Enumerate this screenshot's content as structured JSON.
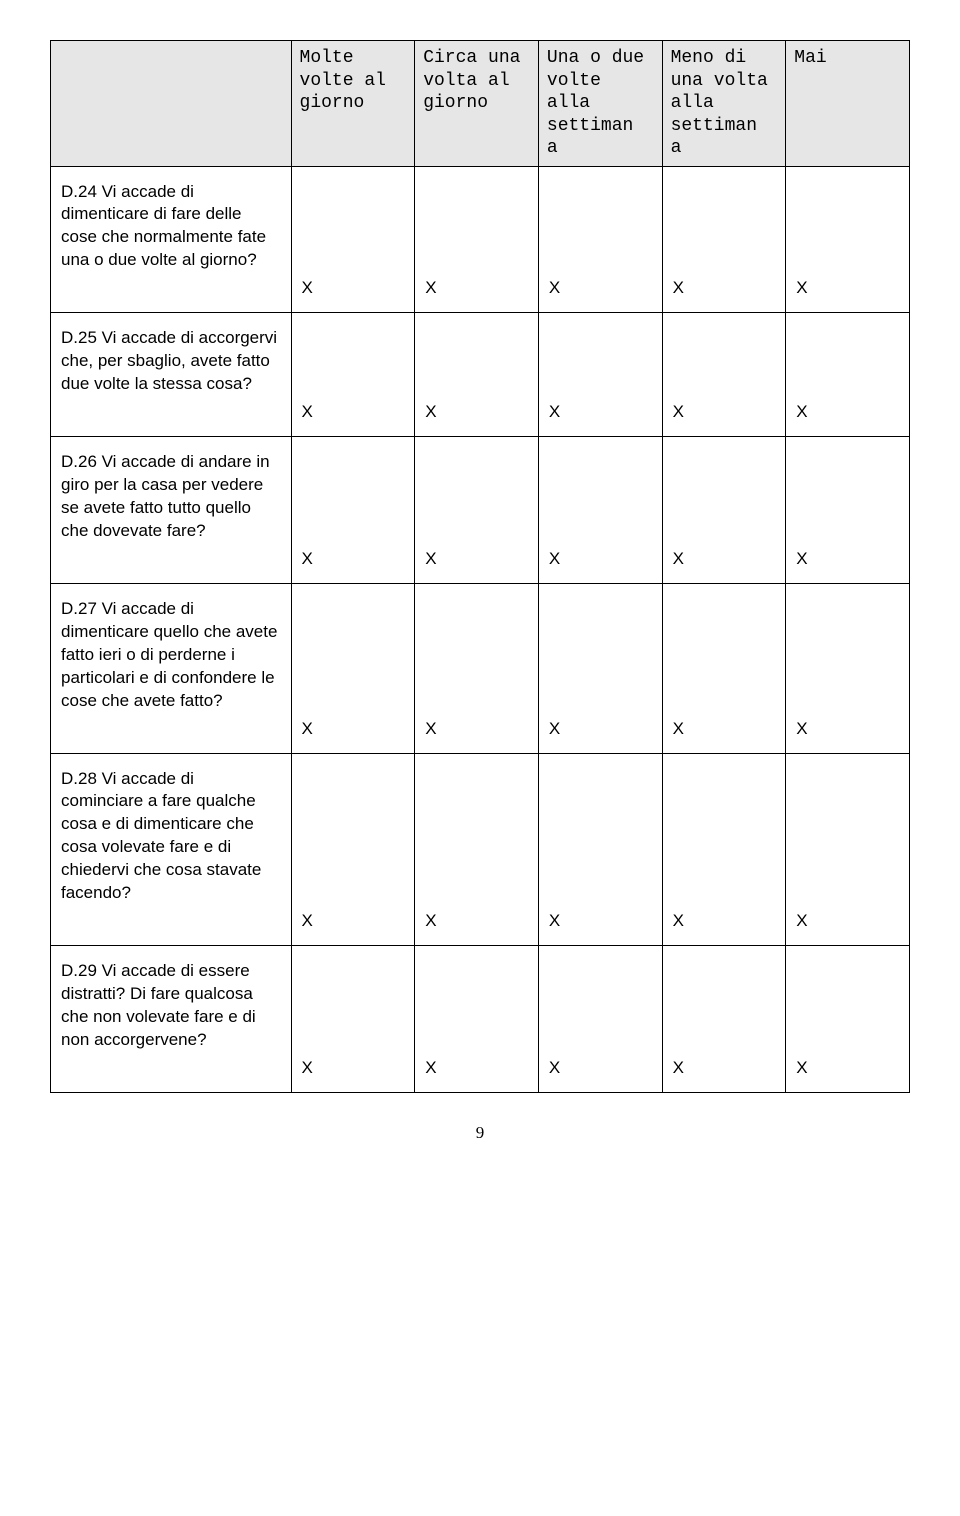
{
  "columns": [
    "",
    "Molte volte al giorno",
    "Circa una volta al giorno",
    "Una o due volte alla settiman a",
    "Meno di una volta alla settiman a",
    "Mai"
  ],
  "rows": [
    {
      "question": "D.24 Vi accade di dimenticare di fare delle cose che normalmente fate una o due volte al giorno?",
      "cells": [
        "X",
        "X",
        "X",
        "X",
        "X"
      ]
    },
    {
      "question": "D.25 Vi accade di accorgervi che, per sbaglio, avete fatto due volte la stessa cosa?",
      "cells": [
        "X",
        "X",
        "X",
        "X",
        "X"
      ]
    },
    {
      "question": "D.26 Vi accade di andare in giro per la casa per vedere se avete fatto tutto quello che dovevate fare?",
      "cells": [
        "X",
        "X",
        "X",
        "X",
        "X"
      ]
    },
    {
      "question": "D.27 Vi accade di dimenticare quello che avete fatto ieri o di perderne i particolari e di confondere le cose che avete fatto?",
      "cells": [
        "X",
        "X",
        "X",
        "X",
        "X"
      ]
    },
    {
      "question": "D.28 Vi accade di cominciare a fare qualche cosa e di dimenticare che cosa volevate fare e di chiedervi che cosa stavate facendo?",
      "cells": [
        "X",
        "X",
        "X",
        "X",
        "X"
      ]
    },
    {
      "question": "D.29 Vi accade di essere distratti? Di fare qualcosa che non volevate fare e di non accorgervene?",
      "cells": [
        "X",
        "X",
        "X",
        "X",
        "X"
      ]
    }
  ],
  "page_number": "9"
}
